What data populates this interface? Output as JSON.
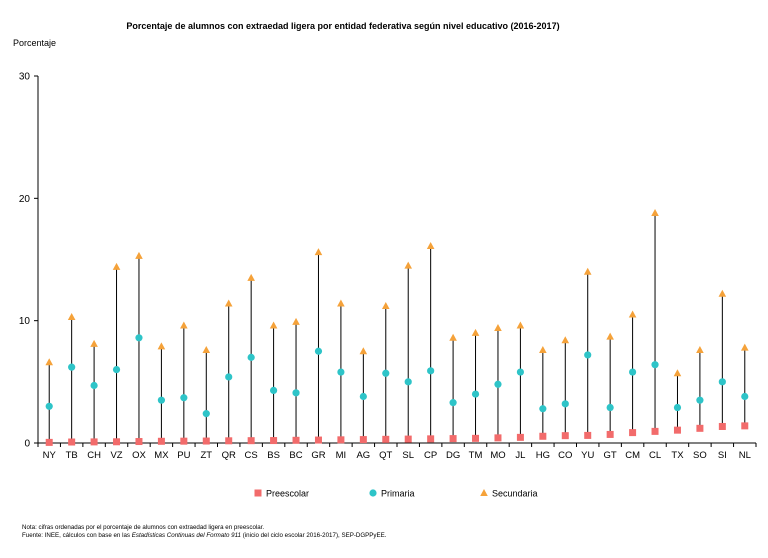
{
  "chart_data": {
    "type": "scatter",
    "title": "Porcentaje de alumnos con extraedad ligera por entidad federativa según nivel educativo (2016-2017)",
    "ylabel": "Porcentaje",
    "xlabel": "",
    "ylim": [
      0,
      30
    ],
    "yticks": [
      0,
      10,
      20,
      30
    ],
    "grid": false,
    "legend_position": "bottom",
    "categories": [
      "NY",
      "TB",
      "CH",
      "VZ",
      "OX",
      "MX",
      "PU",
      "ZT",
      "QR",
      "CS",
      "BS",
      "BC",
      "GR",
      "MI",
      "AG",
      "QT",
      "SL",
      "CP",
      "DG",
      "TM",
      "MO",
      "JL",
      "HG",
      "CO",
      "YU",
      "GT",
      "CM",
      "CL",
      "TX",
      "SO",
      "SI",
      "NL"
    ],
    "series": [
      {
        "name": "Preescolar",
        "color": "#f26b6b",
        "marker": "square",
        "values": [
          0.05,
          0.08,
          0.09,
          0.1,
          0.12,
          0.14,
          0.15,
          0.16,
          0.18,
          0.19,
          0.2,
          0.22,
          0.24,
          0.26,
          0.28,
          0.3,
          0.32,
          0.34,
          0.36,
          0.38,
          0.42,
          0.46,
          0.55,
          0.6,
          0.62,
          0.7,
          0.85,
          0.95,
          1.05,
          1.2,
          1.35,
          1.4
        ]
      },
      {
        "name": "Primaria",
        "color": "#2ec4c8",
        "marker": "circle",
        "values": [
          3.0,
          6.2,
          4.7,
          6.0,
          8.6,
          3.5,
          3.7,
          2.4,
          5.4,
          7.0,
          4.3,
          4.1,
          7.5,
          5.8,
          3.8,
          5.7,
          5.0,
          5.9,
          3.3,
          4.0,
          4.8,
          5.8,
          2.8,
          3.2,
          7.2,
          2.9,
          5.8,
          6.4,
          2.9,
          3.5,
          5.0,
          3.8
        ]
      },
      {
        "name": "Secundaria",
        "color": "#f5a23a",
        "marker": "triangle",
        "values": [
          6.6,
          10.3,
          8.1,
          14.4,
          15.3,
          7.9,
          9.6,
          7.6,
          11.4,
          13.5,
          9.6,
          9.9,
          15.6,
          11.4,
          7.5,
          11.2,
          14.5,
          16.1,
          8.6,
          9.0,
          9.4,
          9.6,
          7.6,
          8.4,
          14.0,
          8.7,
          10.5,
          18.8,
          5.7,
          7.6,
          12.2,
          7.8
        ]
      }
    ]
  },
  "notes": {
    "line1": "Nota: cifras ordenadas por el porcentaje de alumnos con extraedad ligera en preescolar.",
    "line2_prefix": "Fuente: INEE, cálculos con base en las",
    "line2_italic": "Estadísticas Continuas del Formato 911",
    "line2_suffix": "(inicio del ciclo escolar 2016-2017), SEP-DGPPyEE."
  }
}
